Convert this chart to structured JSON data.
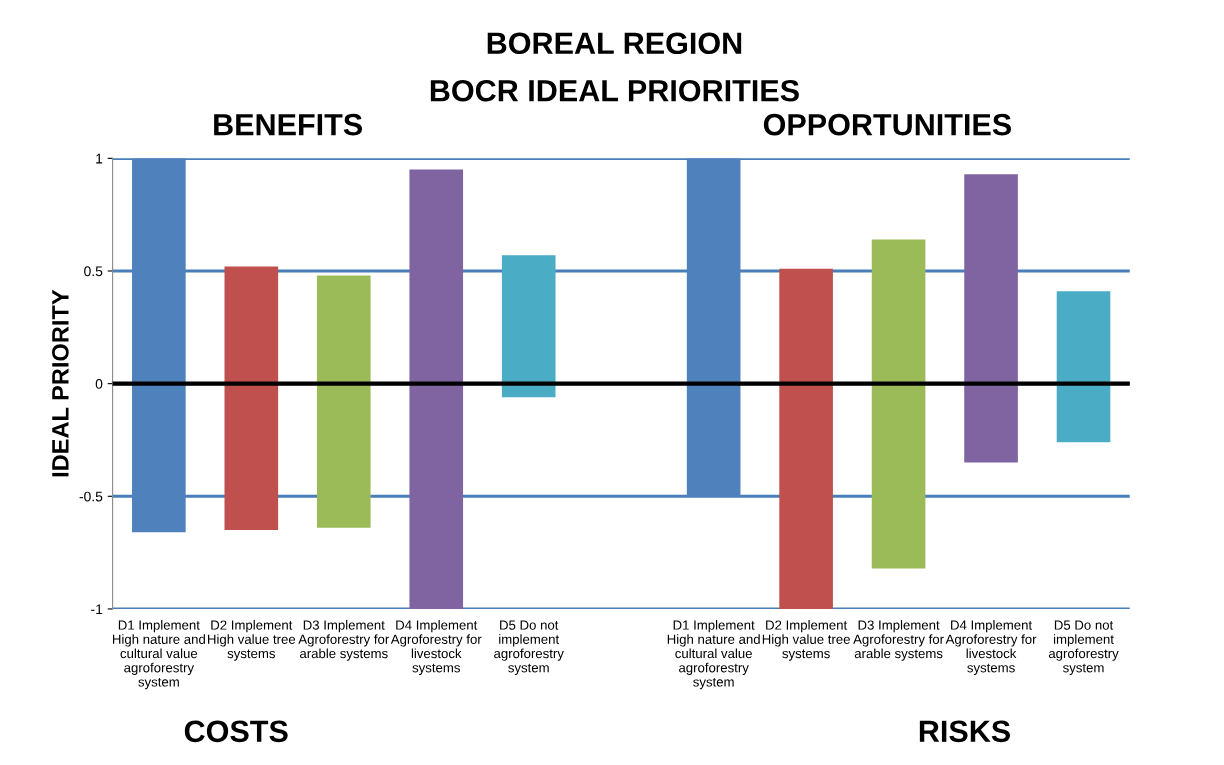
{
  "chart_data": {
    "type": "bar",
    "title": "BOREAL REGION",
    "subtitle": "BOCR IDEAL PRIORITIES",
    "ylabel": "IDEAL PRIORITY",
    "categories": [
      "D1 Implement\nHigh nature and\ncultural value\nagroforestry\nsystem",
      "D2 Implement\nHigh value tree\nsystems",
      "D3 Implement\nAgroforestry for\narable systems",
      "D4 Implement\nAgroforestry for\nlivestock\nsystems",
      "D5 Do not\nimplement\nagroforestry\nsystem",
      null,
      "D1 Implement\nHigh nature and\ncultural value\nagroforestry\nsystem",
      "D2 Implement\nHigh value tree\nsystems",
      "D3 Implement\nAgroforestry for\narable systems",
      "D4 Implement\nAgroforestry for\nlivestock\nsystems",
      "D5 Do not\nimplement\nagroforestry\nsystem"
    ],
    "series": [
      {
        "colors": [
          "#4f81bd",
          "#c0504d",
          "#9bbb59",
          "#8064a2",
          "#4bacc6",
          null,
          "#4f81bd",
          "#c0504d",
          "#9bbb59",
          "#8064a2",
          "#4bacc6"
        ],
        "values": [
          1.0,
          0.52,
          0.48,
          0.95,
          0.57,
          null,
          1.0,
          0.51,
          0.64,
          0.93,
          0.41
        ]
      },
      {
        "colors": [
          "#4f81bd",
          "#c0504d",
          "#9bbb59",
          "#8064a2",
          "#4bacc6",
          null,
          "#4f81bd",
          "#c0504d",
          "#9bbb59",
          "#8064a2",
          "#4bacc6"
        ],
        "values": [
          -0.66,
          -0.65,
          -0.64,
          -1.0,
          -0.06,
          null,
          -0.5,
          -1.0,
          -0.82,
          -0.35,
          -0.26
        ]
      }
    ],
    "stacked": true,
    "ylim": [
      -1,
      1
    ],
    "yticks": [
      -1,
      -0.5,
      0,
      0.5,
      1
    ],
    "grid": "y",
    "ref_lines": [
      {
        "axis": "y",
        "value": 0,
        "color": "#000000"
      }
    ],
    "annotations": [
      "BENEFITS",
      "OPPORTUNITIES",
      "COSTS",
      "RISKS"
    ]
  }
}
